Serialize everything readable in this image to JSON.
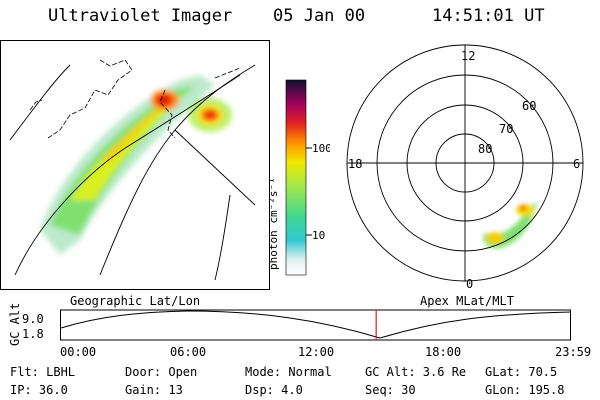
{
  "header": {
    "title": "Ultraviolet Imager",
    "date": "05 Jan 00",
    "time": "14:51:01 UT"
  },
  "colorbar": {
    "label": "photon cm⁻²s⁻¹",
    "ticks": [
      "100",
      "10"
    ]
  },
  "polar": {
    "lat_labels": [
      "80",
      "70",
      "60"
    ],
    "mlt_labels": {
      "top": "12",
      "left": "18",
      "right": "6",
      "bottom": "0"
    }
  },
  "timeline": {
    "left_title": "Geographic Lat/Lon",
    "right_title": "Apex MLat/MLT",
    "y_axis_label": "GC Alt",
    "y_ticks": [
      "9.0",
      "1.8"
    ],
    "x_ticks": [
      "00:00",
      "06:00",
      "12:00",
      "18:00",
      "23:59"
    ],
    "current_time_fraction": 0.618
  },
  "status": {
    "flt": "Flt: LBHL",
    "door": "Door: Open",
    "mode": "Mode: Normal",
    "gc_alt": "GC Alt: 3.6 Re",
    "glat": "GLat:  70.5",
    "ip": "IP: 36.0",
    "gain": "Gain: 13",
    "dsp": "Dsp:    4.0",
    "seq": "Seq: 30",
    "glon": "GLon: 195.8"
  },
  "colors": {
    "marker": "#d02020",
    "aurora_peak": "#e02000"
  }
}
